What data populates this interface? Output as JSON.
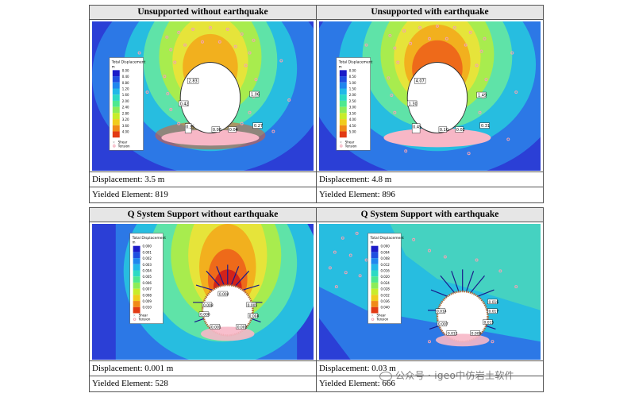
{
  "panels": [
    {
      "title": "Unsupported without earthquake",
      "displacement": "Displacement: 3.5 m",
      "yielded": "Yielded Element: 819",
      "legend": {
        "title": "Total Displacement",
        "unit": "m",
        "ticks": [
          "0.00",
          "0.40",
          "0.80",
          "1.20",
          "1.60",
          "2.00",
          "2.40",
          "2.80",
          "3.20",
          "3.60",
          "4.00"
        ],
        "markers": [
          "Shear",
          "Tension"
        ]
      },
      "labels": [
        "2.83",
        "0.42",
        "1.06",
        "0.27",
        "0.35",
        "0.08",
        "0.04"
      ]
    },
    {
      "title": "Unsupported with earthquake",
      "displacement": "Displacement: 4.8 m",
      "yielded": "Yielded Element: 896",
      "legend": {
        "title": "Total Displacement",
        "unit": "m",
        "ticks": [
          "0.00",
          "0.50",
          "1.00",
          "1.50",
          "2.00",
          "2.50",
          "3.00",
          "3.50",
          "4.00",
          "4.50",
          "5.00"
        ],
        "markers": [
          "Shear",
          "Tension"
        ]
      },
      "labels": [
        "4.07",
        "1.30",
        "1.49",
        "0.45",
        "0.31",
        "0.10",
        "0.02"
      ]
    },
    {
      "title": "Q System Support without earthquake",
      "displacement": "Displacement: 0.001 m",
      "yielded": "Yielded Element: 528",
      "legend": {
        "title": "Total Displacement",
        "unit": "m",
        "ticks": [
          "0.000",
          "0.001",
          "0.002",
          "0.003",
          "0.004",
          "0.005",
          "0.006",
          "0.007",
          "0.008",
          "0.009",
          "0.010"
        ],
        "markers": [
          "Shear",
          "Tension"
        ]
      },
      "labels": [
        "0.004",
        "0.008",
        "0.005",
        "0.006",
        "0.004",
        "0.001",
        "0.002"
      ]
    },
    {
      "title": "Q System Support with earthquake",
      "displacement": "Displacement: 0.03 m",
      "yielded": "Yielded Element: 666",
      "legend": {
        "title": "Total Displacement",
        "unit": "m",
        "ticks": [
          "0.000",
          "0.004",
          "0.008",
          "0.012",
          "0.016",
          "0.020",
          "0.024",
          "0.028",
          "0.032",
          "0.036",
          "0.040"
        ],
        "markers": [
          "Shear",
          "Tension"
        ]
      },
      "labels": [
        "0.016",
        "0.014",
        "0.017",
        "0.007",
        "0.015",
        "0.012",
        "0.009"
      ]
    }
  ],
  "legend_colors": [
    "#1b1bc8",
    "#1f4ee0",
    "#1f86ee",
    "#22b8e8",
    "#2ddac4",
    "#4ee890",
    "#8cec58",
    "#c8ec2a",
    "#f0cc1c",
    "#f08a18",
    "#e23a14"
  ],
  "watermark": "公众号 · igeo中仿岩土软件"
}
